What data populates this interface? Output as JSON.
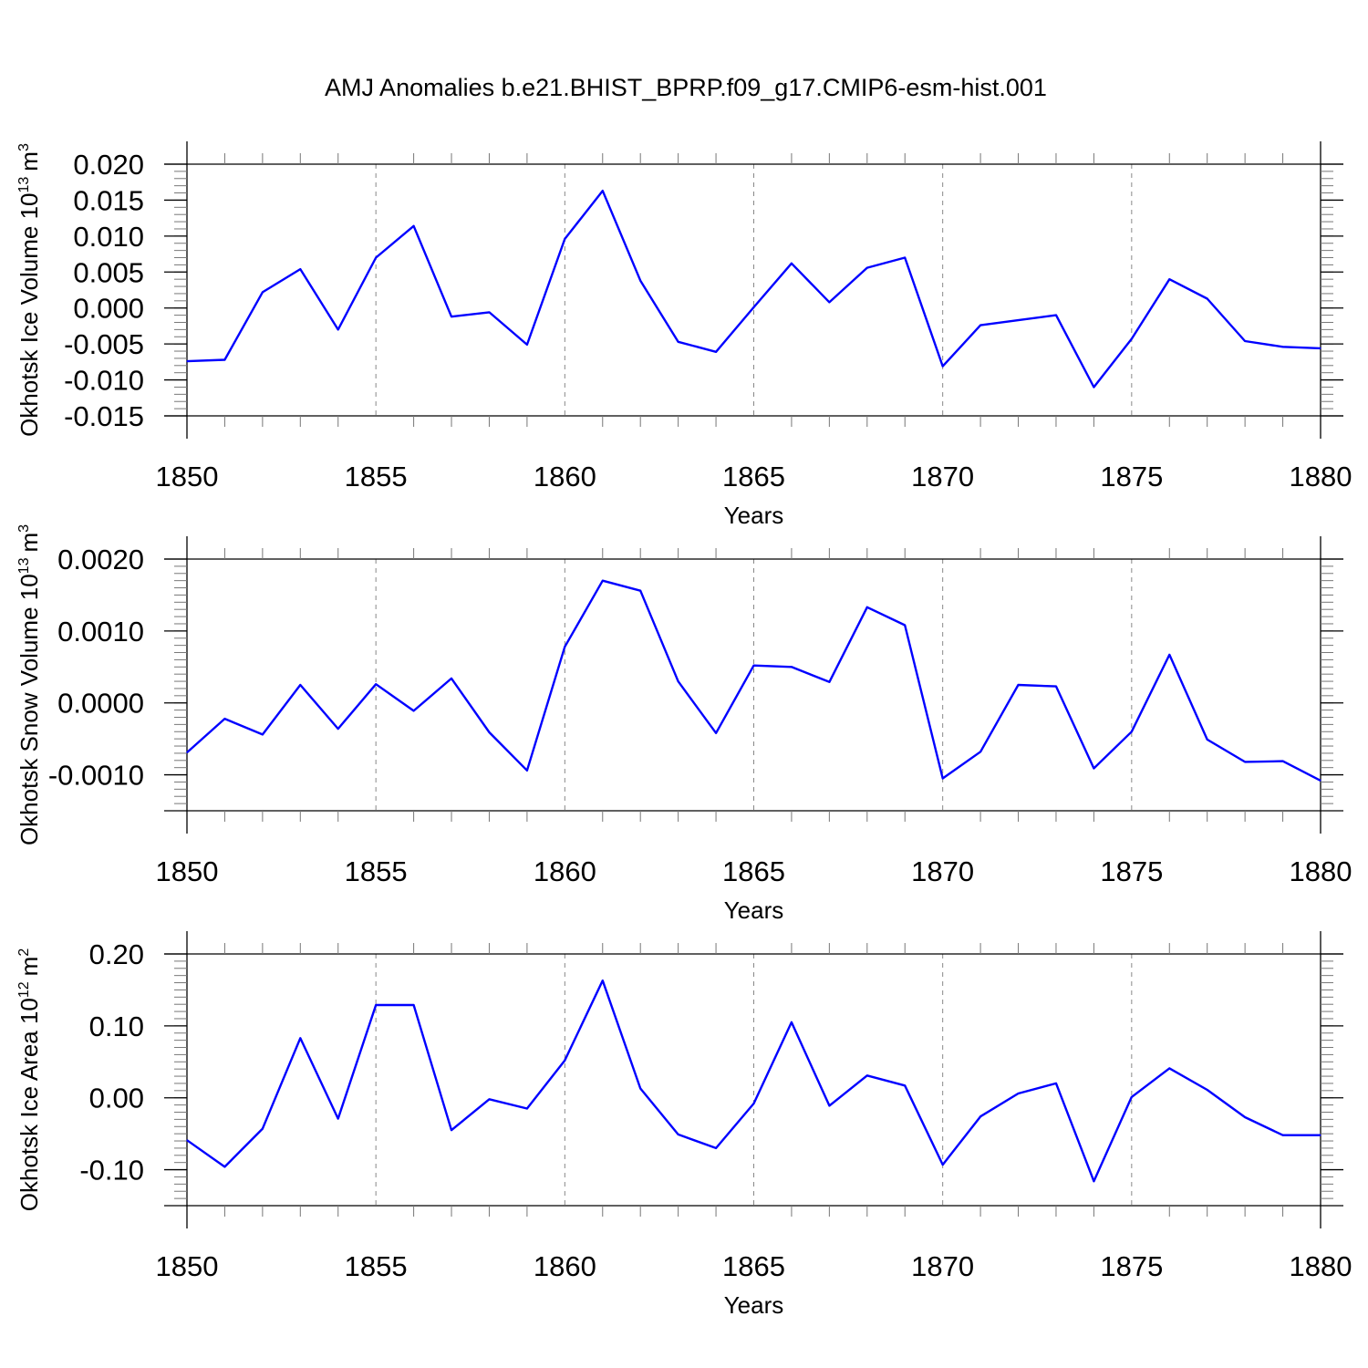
{
  "figure": {
    "title": "AMJ Anomalies b.e21.BHIST_BPRP.f09_g17.CMIP6-esm-hist.001",
    "line_color": "#0000ff",
    "axis_color": "#000000",
    "grid_color": "#888888"
  },
  "chart_data": [
    {
      "type": "line",
      "xlabel": "Years",
      "ylabel_main": "Okhotsk Ice Volume 10",
      "ylabel_exp": "13",
      "ylabel_unit": "m",
      "ylabel_unit_exp": "3",
      "xlim": [
        1850,
        1880
      ],
      "ylim": [
        -0.015,
        0.02
      ],
      "yticks": [
        "0.020",
        "0.015",
        "0.010",
        "0.005",
        "0.000",
        "-0.005",
        "-0.010",
        "-0.015"
      ],
      "ytick_values": [
        0.02,
        0.015,
        0.01,
        0.005,
        0.0,
        -0.005,
        -0.01,
        -0.015
      ],
      "xticks": [
        "1850",
        "1855",
        "1860",
        "1865",
        "1870",
        "1875",
        "1880"
      ],
      "xtick_values": [
        1850,
        1855,
        1860,
        1865,
        1870,
        1875,
        1880
      ],
      "grid": "vertical dashed at major x ticks",
      "x": [
        1850,
        1851,
        1852,
        1853,
        1854,
        1855,
        1856,
        1857,
        1858,
        1859,
        1860,
        1861,
        1862,
        1863,
        1864,
        1865,
        1866,
        1867,
        1868,
        1869,
        1870,
        1871,
        1872,
        1873,
        1874,
        1875,
        1876,
        1877,
        1878,
        1879,
        1880
      ],
      "y": [
        -0.0074,
        -0.0072,
        0.0022,
        0.0054,
        -0.003,
        0.007,
        0.0114,
        -0.0012,
        -0.0006,
        -0.0051,
        0.0096,
        0.0163,
        0.0038,
        -0.0047,
        -0.0061,
        0.0001,
        0.0062,
        0.0008,
        0.0056,
        0.007,
        -0.0081,
        -0.0024,
        -0.0017,
        -0.001,
        -0.011,
        -0.0043,
        0.004,
        0.0013,
        -0.0046,
        -0.0054,
        -0.0056
      ]
    },
    {
      "type": "line",
      "xlabel": "Years",
      "ylabel_main": "Okhotsk Snow Volume 10",
      "ylabel_exp": "13",
      "ylabel_unit": "m",
      "ylabel_unit_exp": "3",
      "xlim": [
        1850,
        1880
      ],
      "ylim": [
        -0.0015,
        0.002
      ],
      "yticks": [
        "0.0020",
        "0.0010",
        "0.0000",
        "-0.0010"
      ],
      "ytick_values": [
        0.002,
        0.001,
        0.0,
        -0.001
      ],
      "xticks": [
        "1850",
        "1855",
        "1860",
        "1865",
        "1870",
        "1875",
        "1880"
      ],
      "xtick_values": [
        1850,
        1855,
        1860,
        1865,
        1870,
        1875,
        1880
      ],
      "grid": "vertical dashed at major x ticks",
      "x": [
        1850,
        1851,
        1852,
        1853,
        1854,
        1855,
        1856,
        1857,
        1858,
        1859,
        1860,
        1861,
        1862,
        1863,
        1864,
        1865,
        1866,
        1867,
        1868,
        1869,
        1870,
        1871,
        1872,
        1873,
        1874,
        1875,
        1876,
        1877,
        1878,
        1879,
        1880
      ],
      "y": [
        -0.00069,
        -0.00022,
        -0.00044,
        0.00025,
        -0.00036,
        0.00026,
        -0.00011,
        0.00034,
        -0.00041,
        -0.00094,
        0.00078,
        0.0017,
        0.00156,
        0.0003,
        -0.00042,
        0.00052,
        0.0005,
        0.00029,
        0.00133,
        0.00108,
        -0.00105,
        -0.00068,
        0.00025,
        0.00023,
        -0.00091,
        -0.0004,
        0.00067,
        -0.00051,
        -0.00082,
        -0.00081,
        -0.00108
      ]
    },
    {
      "type": "line",
      "xlabel": "Years",
      "ylabel_main": "Okhotsk Ice Area 10",
      "ylabel_exp": "12",
      "ylabel_unit": "m",
      "ylabel_unit_exp": "2",
      "xlim": [
        1850,
        1880
      ],
      "ylim": [
        -0.15,
        0.2
      ],
      "yticks": [
        "0.20",
        "0.10",
        "0.00",
        "-0.10"
      ],
      "ytick_values": [
        0.2,
        0.1,
        0.0,
        -0.1
      ],
      "xticks": [
        "1850",
        "1855",
        "1860",
        "1865",
        "1870",
        "1875",
        "1880"
      ],
      "xtick_values": [
        1850,
        1855,
        1860,
        1865,
        1870,
        1875,
        1880
      ],
      "grid": "vertical dashed at major x ticks",
      "x": [
        1850,
        1851,
        1852,
        1853,
        1854,
        1855,
        1856,
        1857,
        1858,
        1859,
        1860,
        1861,
        1862,
        1863,
        1864,
        1865,
        1866,
        1867,
        1868,
        1869,
        1870,
        1871,
        1872,
        1873,
        1874,
        1875,
        1876,
        1877,
        1878,
        1879,
        1880
      ],
      "y": [
        -0.059,
        -0.096,
        -0.043,
        0.083,
        -0.029,
        0.129,
        0.129,
        -0.045,
        -0.002,
        -0.015,
        0.052,
        0.163,
        0.013,
        -0.051,
        -0.07,
        -0.008,
        0.105,
        -0.011,
        0.031,
        0.017,
        -0.093,
        -0.026,
        0.006,
        0.02,
        -0.116,
        0.001,
        0.041,
        0.011,
        -0.027,
        -0.052,
        -0.052
      ]
    }
  ]
}
